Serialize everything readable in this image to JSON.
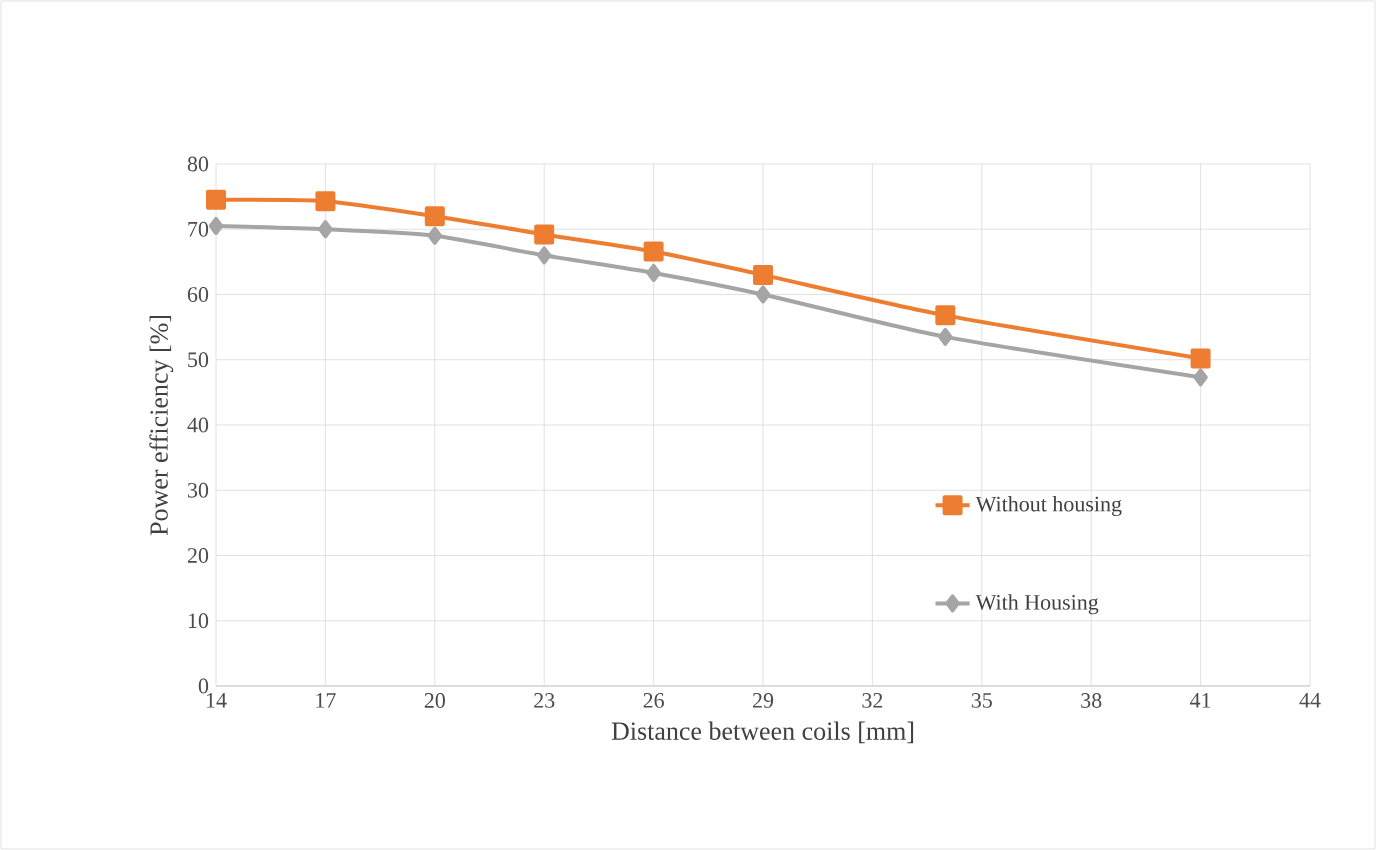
{
  "chart_data": {
    "type": "line",
    "xlabel": "Distance between coils [mm]",
    "ylabel": "Power efficiency [%]",
    "x": [
      14,
      17,
      20,
      23,
      26,
      29,
      34,
      41
    ],
    "series": [
      {
        "name": "Without housing",
        "color": "#ed7d31",
        "marker": "square",
        "values": [
          74.5,
          74.3,
          72,
          69.2,
          66.6,
          63,
          56.8,
          50.2
        ]
      },
      {
        "name": "With Housing",
        "color": "#a5a5a5",
        "marker": "diamond",
        "values": [
          70.5,
          70,
          69,
          66,
          63.3,
          60,
          53.5,
          47.3
        ]
      }
    ],
    "xlim": [
      14,
      44
    ],
    "xticks": [
      14,
      17,
      20,
      23,
      26,
      29,
      32,
      35,
      38,
      41,
      44
    ],
    "ylim": [
      0,
      80
    ],
    "yticks": [
      0,
      10,
      20,
      30,
      40,
      50,
      60,
      70,
      80
    ],
    "grid": true,
    "legend": "bottom right",
    "line_style": "solid"
  }
}
